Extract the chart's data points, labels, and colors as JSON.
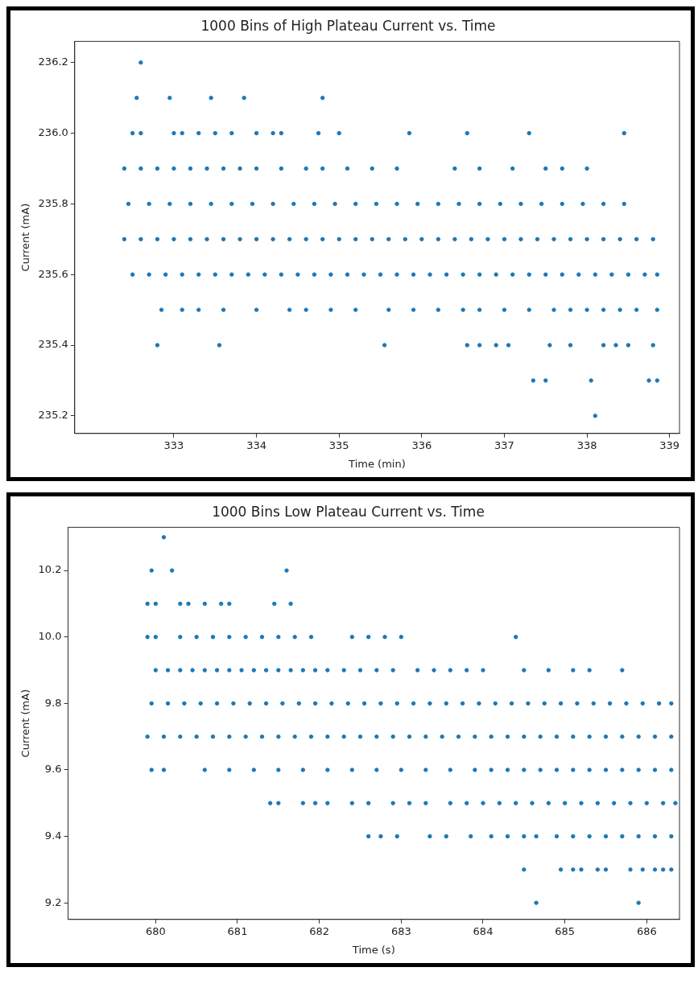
{
  "chart_data": [
    {
      "type": "scatter",
      "title": "1000 Bins of High Plateau Current vs. Time",
      "xlabel": "Time (min)",
      "ylabel": "Current (mA)",
      "marker": "circle",
      "xlim": [
        331.8,
        339.12
      ],
      "xticks": [
        333,
        334,
        335,
        336,
        337,
        338,
        339
      ],
      "ylim": [
        235.15,
        236.26
      ],
      "yticks": [
        {
          "value": 235.2,
          "label": "235.2"
        },
        {
          "value": 235.4,
          "label": "235.4"
        },
        {
          "value": 235.6,
          "label": "235.6"
        },
        {
          "value": 235.8,
          "label": "235.8"
        },
        {
          "value": 236,
          "label": "236.0"
        },
        {
          "value": 236.2,
          "label": "236.2"
        }
      ],
      "series": [
        {
          "color": "#1f77b4",
          "x": [
            332.6,
            332.55,
            332.95,
            333.45,
            333.85,
            334.8,
            332.5,
            332.6,
            333.0,
            333.1,
            333.3,
            333.5,
            333.7,
            334.0,
            334.2,
            334.3,
            334.75,
            335.0,
            335.85,
            336.55,
            337.3,
            338.45,
            332.4,
            332.6,
            332.8,
            333.0,
            333.2,
            333.4,
            333.6,
            333.8,
            334.0,
            334.3,
            334.6,
            334.8,
            335.1,
            335.4,
            335.7,
            336.4,
            336.7,
            337.1,
            337.5,
            337.7,
            338.0,
            332.45,
            332.7,
            332.95,
            333.2,
            333.45,
            333.7,
            333.95,
            334.2,
            334.45,
            334.7,
            334.95,
            335.2,
            335.45,
            335.7,
            335.95,
            336.2,
            336.45,
            336.7,
            336.95,
            337.2,
            337.45,
            337.7,
            337.95,
            338.2,
            338.45,
            332.4,
            332.6,
            332.8,
            333.0,
            333.2,
            333.4,
            333.6,
            333.8,
            334.0,
            334.2,
            334.4,
            334.6,
            334.8,
            335.0,
            335.2,
            335.4,
            335.6,
            335.8,
            336.0,
            336.2,
            336.4,
            336.6,
            336.8,
            337.0,
            337.2,
            337.4,
            337.6,
            337.8,
            338.0,
            338.2,
            338.4,
            338.6,
            338.8,
            332.5,
            332.7,
            332.9,
            333.1,
            333.3,
            333.5,
            333.7,
            333.9,
            334.1,
            334.3,
            334.5,
            334.7,
            334.9,
            335.1,
            335.3,
            335.5,
            335.7,
            335.9,
            336.1,
            336.3,
            336.5,
            336.7,
            336.9,
            337.1,
            337.3,
            337.5,
            337.7,
            337.9,
            338.1,
            338.3,
            338.5,
            338.7,
            338.85,
            332.85,
            333.1,
            333.3,
            333.6,
            334.0,
            334.4,
            334.6,
            334.9,
            335.2,
            335.6,
            335.9,
            336.2,
            336.5,
            336.7,
            337.0,
            337.3,
            337.6,
            337.8,
            338.0,
            338.2,
            338.4,
            338.6,
            338.85,
            332.8,
            333.55,
            335.55,
            336.55,
            336.7,
            336.9,
            337.05,
            337.55,
            337.8,
            338.2,
            338.35,
            338.5,
            338.8,
            337.35,
            337.5,
            338.05,
            338.75,
            338.85,
            338.1
          ],
          "values": [
            236.2,
            236.1,
            236.1,
            236.1,
            236.1,
            236.1,
            236,
            236,
            236,
            236,
            236,
            236,
            236,
            236,
            236,
            236,
            236,
            236,
            236,
            236,
            236,
            236,
            235.9,
            235.9,
            235.9,
            235.9,
            235.9,
            235.9,
            235.9,
            235.9,
            235.9,
            235.9,
            235.9,
            235.9,
            235.9,
            235.9,
            235.9,
            235.9,
            235.9,
            235.9,
            235.9,
            235.9,
            235.9,
            235.8,
            235.8,
            235.8,
            235.8,
            235.8,
            235.8,
            235.8,
            235.8,
            235.8,
            235.8,
            235.8,
            235.8,
            235.8,
            235.8,
            235.8,
            235.8,
            235.8,
            235.8,
            235.8,
            235.8,
            235.8,
            235.8,
            235.8,
            235.8,
            235.8,
            235.7,
            235.7,
            235.7,
            235.7,
            235.7,
            235.7,
            235.7,
            235.7,
            235.7,
            235.7,
            235.7,
            235.7,
            235.7,
            235.7,
            235.7,
            235.7,
            235.7,
            235.7,
            235.7,
            235.7,
            235.7,
            235.7,
            235.7,
            235.7,
            235.7,
            235.7,
            235.7,
            235.7,
            235.7,
            235.7,
            235.7,
            235.7,
            235.7,
            235.6,
            235.6,
            235.6,
            235.6,
            235.6,
            235.6,
            235.6,
            235.6,
            235.6,
            235.6,
            235.6,
            235.6,
            235.6,
            235.6,
            235.6,
            235.6,
            235.6,
            235.6,
            235.6,
            235.6,
            235.6,
            235.6,
            235.6,
            235.6,
            235.6,
            235.6,
            235.6,
            235.6,
            235.6,
            235.6,
            235.6,
            235.6,
            235.6,
            235.5,
            235.5,
            235.5,
            235.5,
            235.5,
            235.5,
            235.5,
            235.5,
            235.5,
            235.5,
            235.5,
            235.5,
            235.5,
            235.5,
            235.5,
            235.5,
            235.5,
            235.5,
            235.5,
            235.5,
            235.5,
            235.5,
            235.5,
            235.4,
            235.4,
            235.4,
            235.4,
            235.4,
            235.4,
            235.4,
            235.4,
            235.4,
            235.4,
            235.4,
            235.4,
            235.4,
            235.3,
            235.3,
            235.3,
            235.3,
            235.3,
            235.2
          ]
        }
      ]
    },
    {
      "type": "scatter",
      "title": "1000 Bins Low Plateau Current vs. Time",
      "xlabel": "Time (s)",
      "ylabel": "Current (mA)",
      "marker": "circle",
      "xlim": [
        678.93,
        686.4
      ],
      "xticks": [
        680,
        681,
        682,
        683,
        684,
        685,
        686
      ],
      "ylim": [
        9.15,
        10.33
      ],
      "yticks": [
        {
          "value": 9.2,
          "label": "9.2"
        },
        {
          "value": 9.4,
          "label": "9.4"
        },
        {
          "value": 9.6,
          "label": "9.6"
        },
        {
          "value": 9.8,
          "label": "9.8"
        },
        {
          "value": 10,
          "label": "10.0"
        },
        {
          "value": 10.2,
          "label": "10.2"
        }
      ],
      "series": [
        {
          "color": "#1f77b4",
          "x": [
            680.1,
            679.95,
            680.2,
            681.6,
            679.9,
            680.0,
            680.3,
            680.4,
            680.6,
            680.8,
            680.9,
            681.45,
            681.65,
            679.9,
            680.0,
            680.3,
            680.5,
            680.7,
            680.9,
            681.1,
            681.3,
            681.5,
            681.7,
            681.9,
            682.4,
            682.6,
            682.8,
            683.0,
            684.4,
            680.0,
            680.15,
            680.3,
            680.45,
            680.6,
            680.75,
            680.9,
            681.05,
            681.2,
            681.35,
            681.5,
            681.65,
            681.8,
            681.95,
            682.1,
            682.3,
            682.5,
            682.7,
            682.9,
            683.2,
            683.4,
            683.6,
            683.8,
            684.0,
            684.5,
            684.8,
            685.1,
            685.3,
            685.7,
            679.95,
            680.15,
            680.35,
            680.55,
            680.75,
            680.95,
            681.15,
            681.35,
            681.55,
            681.75,
            681.95,
            682.15,
            682.35,
            682.55,
            682.75,
            682.95,
            683.15,
            683.35,
            683.55,
            683.75,
            683.95,
            684.15,
            684.35,
            684.55,
            684.75,
            684.95,
            685.15,
            685.35,
            685.55,
            685.75,
            685.95,
            686.15,
            686.3,
            679.9,
            680.1,
            680.3,
            680.5,
            680.7,
            680.9,
            681.1,
            681.3,
            681.5,
            681.7,
            681.9,
            682.1,
            682.3,
            682.5,
            682.7,
            682.9,
            683.1,
            683.3,
            683.5,
            683.7,
            683.9,
            684.1,
            684.3,
            684.5,
            684.7,
            684.9,
            685.1,
            685.3,
            685.5,
            685.7,
            685.9,
            686.1,
            686.3,
            679.95,
            680.1,
            680.6,
            680.9,
            681.2,
            681.5,
            681.8,
            682.1,
            682.4,
            682.7,
            683.0,
            683.3,
            683.6,
            683.9,
            684.1,
            684.3,
            684.5,
            684.7,
            684.9,
            685.1,
            685.3,
            685.5,
            685.7,
            685.9,
            686.1,
            686.3,
            681.4,
            681.5,
            681.8,
            681.95,
            682.1,
            682.4,
            682.6,
            682.9,
            683.1,
            683.3,
            683.6,
            683.8,
            684.0,
            684.2,
            684.4,
            684.6,
            684.8,
            685.0,
            685.2,
            685.4,
            685.6,
            685.8,
            686.0,
            686.2,
            686.35,
            682.6,
            682.75,
            682.95,
            683.35,
            683.55,
            683.85,
            684.1,
            684.3,
            684.5,
            684.65,
            684.9,
            685.1,
            685.3,
            685.5,
            685.7,
            685.9,
            686.1,
            686.3,
            684.5,
            684.95,
            685.1,
            685.2,
            685.4,
            685.5,
            685.8,
            685.95,
            686.1,
            686.2,
            686.3,
            684.65,
            685.9
          ],
          "values": [
            10.3,
            10.2,
            10.2,
            10.2,
            10.1,
            10.1,
            10.1,
            10.1,
            10.1,
            10.1,
            10.1,
            10.1,
            10.1,
            10,
            10,
            10,
            10,
            10,
            10,
            10,
            10,
            10,
            10,
            10,
            10,
            10,
            10,
            10,
            10,
            9.9,
            9.9,
            9.9,
            9.9,
            9.9,
            9.9,
            9.9,
            9.9,
            9.9,
            9.9,
            9.9,
            9.9,
            9.9,
            9.9,
            9.9,
            9.9,
            9.9,
            9.9,
            9.9,
            9.9,
            9.9,
            9.9,
            9.9,
            9.9,
            9.9,
            9.9,
            9.9,
            9.9,
            9.9,
            9.8,
            9.8,
            9.8,
            9.8,
            9.8,
            9.8,
            9.8,
            9.8,
            9.8,
            9.8,
            9.8,
            9.8,
            9.8,
            9.8,
            9.8,
            9.8,
            9.8,
            9.8,
            9.8,
            9.8,
            9.8,
            9.8,
            9.8,
            9.8,
            9.8,
            9.8,
            9.8,
            9.8,
            9.8,
            9.8,
            9.8,
            9.8,
            9.8,
            9.7,
            9.7,
            9.7,
            9.7,
            9.7,
            9.7,
            9.7,
            9.7,
            9.7,
            9.7,
            9.7,
            9.7,
            9.7,
            9.7,
            9.7,
            9.7,
            9.7,
            9.7,
            9.7,
            9.7,
            9.7,
            9.7,
            9.7,
            9.7,
            9.7,
            9.7,
            9.7,
            9.7,
            9.7,
            9.7,
            9.7,
            9.7,
            9.7,
            9.6,
            9.6,
            9.6,
            9.6,
            9.6,
            9.6,
            9.6,
            9.6,
            9.6,
            9.6,
            9.6,
            9.6,
            9.6,
            9.6,
            9.6,
            9.6,
            9.6,
            9.6,
            9.6,
            9.6,
            9.6,
            9.6,
            9.6,
            9.6,
            9.6,
            9.6,
            9.5,
            9.5,
            9.5,
            9.5,
            9.5,
            9.5,
            9.5,
            9.5,
            9.5,
            9.5,
            9.5,
            9.5,
            9.5,
            9.5,
            9.5,
            9.5,
            9.5,
            9.5,
            9.5,
            9.5,
            9.5,
            9.5,
            9.5,
            9.5,
            9.5,
            9.4,
            9.4,
            9.4,
            9.4,
            9.4,
            9.4,
            9.4,
            9.4,
            9.4,
            9.4,
            9.4,
            9.4,
            9.4,
            9.4,
            9.4,
            9.4,
            9.4,
            9.4,
            9.3,
            9.3,
            9.3,
            9.3,
            9.3,
            9.3,
            9.3,
            9.3,
            9.3,
            9.3,
            9.3,
            9.2,
            9.2
          ]
        }
      ]
    }
  ]
}
